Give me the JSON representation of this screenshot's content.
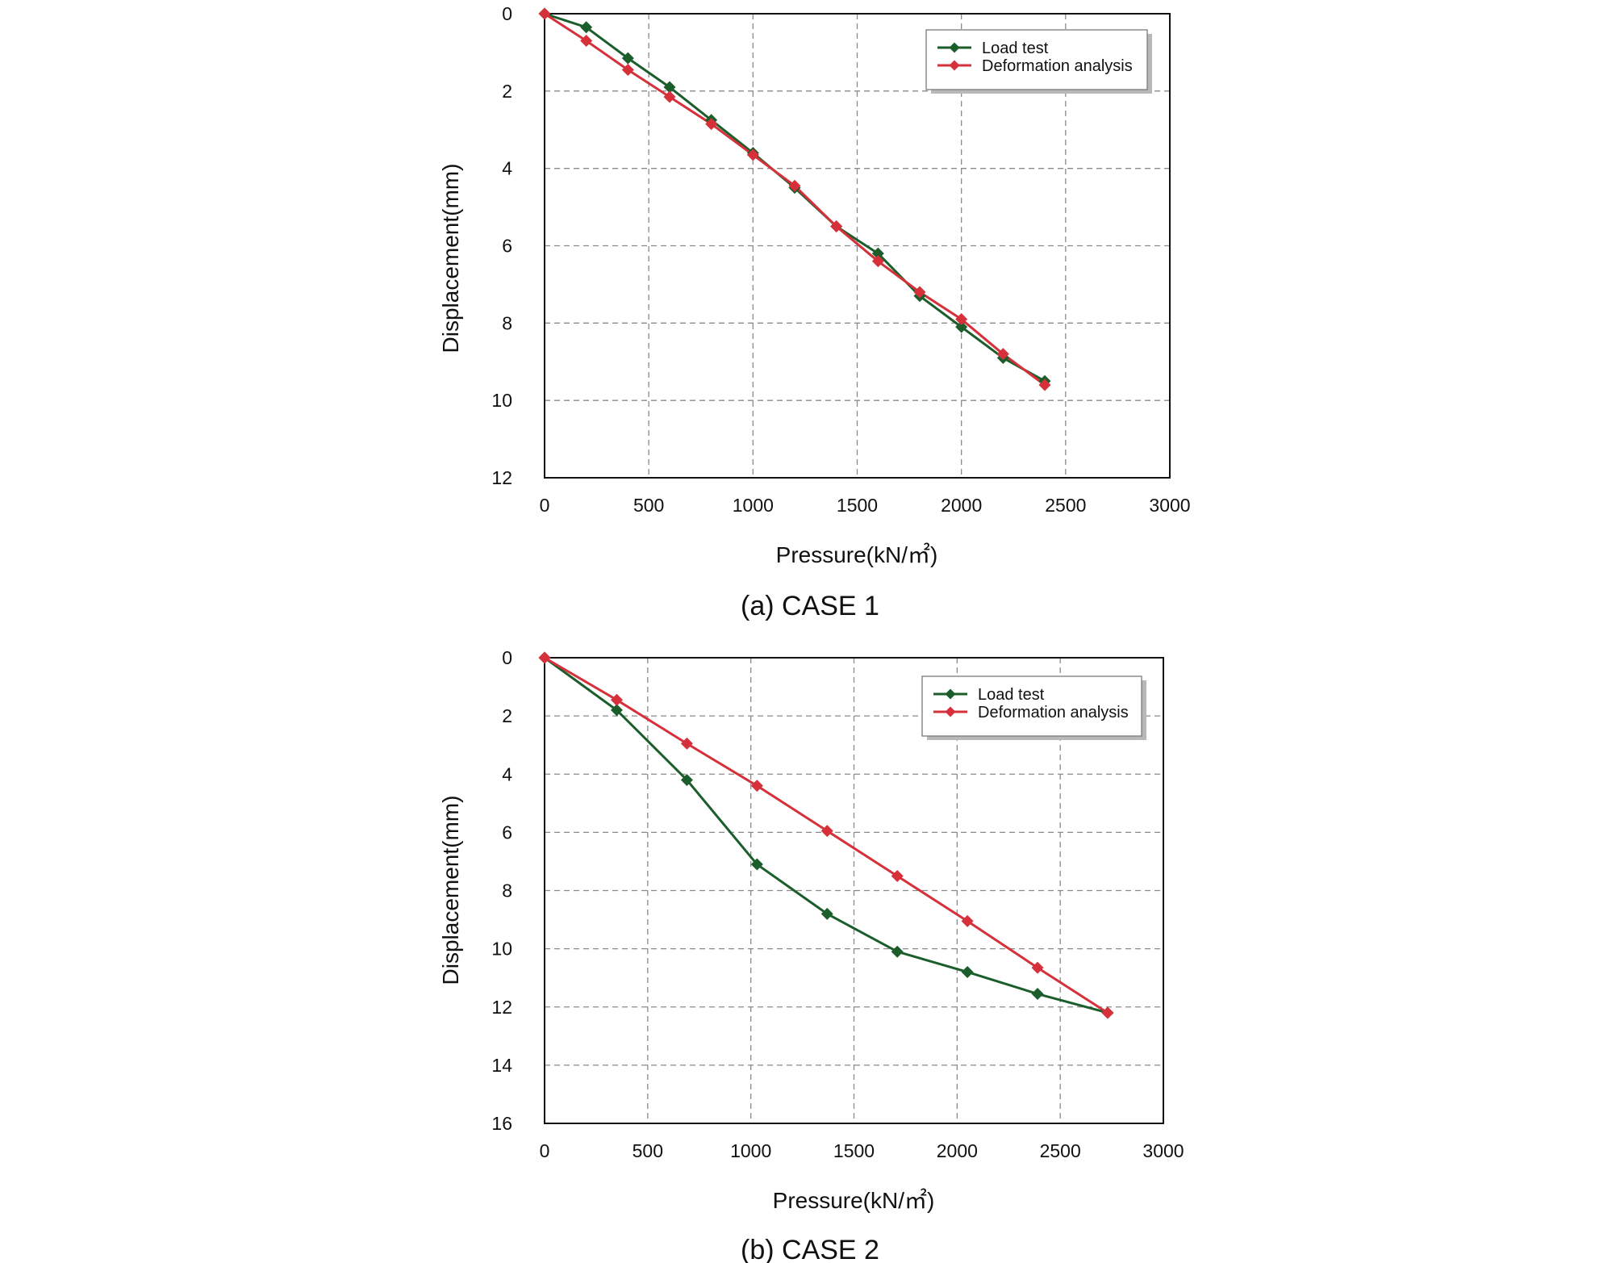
{
  "chart_data": [
    {
      "type": "line",
      "caption": "(a) CASE 1",
      "xlabel": "Pressure(kN/㎡)",
      "ylabel": "Displacement(mm)",
      "xlim": [
        0,
        3000
      ],
      "ylim": [
        0,
        12
      ],
      "y_inverted": true,
      "xticks": [
        0,
        500,
        1000,
        1500,
        2000,
        2500,
        3000
      ],
      "yticks": [
        0,
        2,
        4,
        6,
        8,
        10,
        12
      ],
      "grid": true,
      "legend_position": "top-right",
      "series": [
        {
          "name": "Load test",
          "color": "#1b5e2b",
          "x": [
            0,
            200,
            400,
            600,
            800,
            1000,
            1200,
            1400,
            1600,
            1800,
            2000,
            2200,
            2400
          ],
          "y": [
            0,
            0.35,
            1.15,
            1.9,
            2.75,
            3.6,
            4.5,
            5.5,
            6.2,
            7.3,
            8.1,
            8.9,
            9.5
          ]
        },
        {
          "name": "Deformation analysis",
          "color": "#d6303a",
          "x": [
            0,
            200,
            400,
            600,
            800,
            1000,
            1200,
            1400,
            1600,
            1800,
            2000,
            2200,
            2400
          ],
          "y": [
            0,
            0.7,
            1.45,
            2.15,
            2.85,
            3.65,
            4.45,
            5.5,
            6.4,
            7.2,
            7.9,
            8.8,
            9.6
          ]
        }
      ]
    },
    {
      "type": "line",
      "caption": "(b) CASE 2",
      "xlabel": "Pressure(kN/㎡)",
      "ylabel": "Displacement(mm)",
      "xlim": [
        0,
        3000
      ],
      "ylim": [
        0,
        16
      ],
      "y_inverted": true,
      "xticks": [
        0,
        500,
        1000,
        1500,
        2000,
        2500,
        3000
      ],
      "yticks": [
        0,
        2,
        4,
        6,
        8,
        10,
        12,
        14,
        16
      ],
      "grid": true,
      "legend_position": "top-right",
      "series": [
        {
          "name": "Load test",
          "color": "#1b5e2b",
          "x": [
            0,
            350,
            690,
            1030,
            1370,
            1710,
            2050,
            2390,
            2730
          ],
          "y": [
            0,
            1.8,
            4.2,
            7.1,
            8.8,
            10.1,
            10.8,
            11.55,
            12.2
          ]
        },
        {
          "name": "Deformation analysis",
          "color": "#d6303a",
          "x": [
            0,
            350,
            690,
            1030,
            1370,
            1710,
            2050,
            2390,
            2730
          ],
          "y": [
            0,
            1.45,
            2.95,
            4.4,
            5.95,
            7.5,
            9.05,
            10.65,
            12.2
          ]
        }
      ]
    }
  ]
}
